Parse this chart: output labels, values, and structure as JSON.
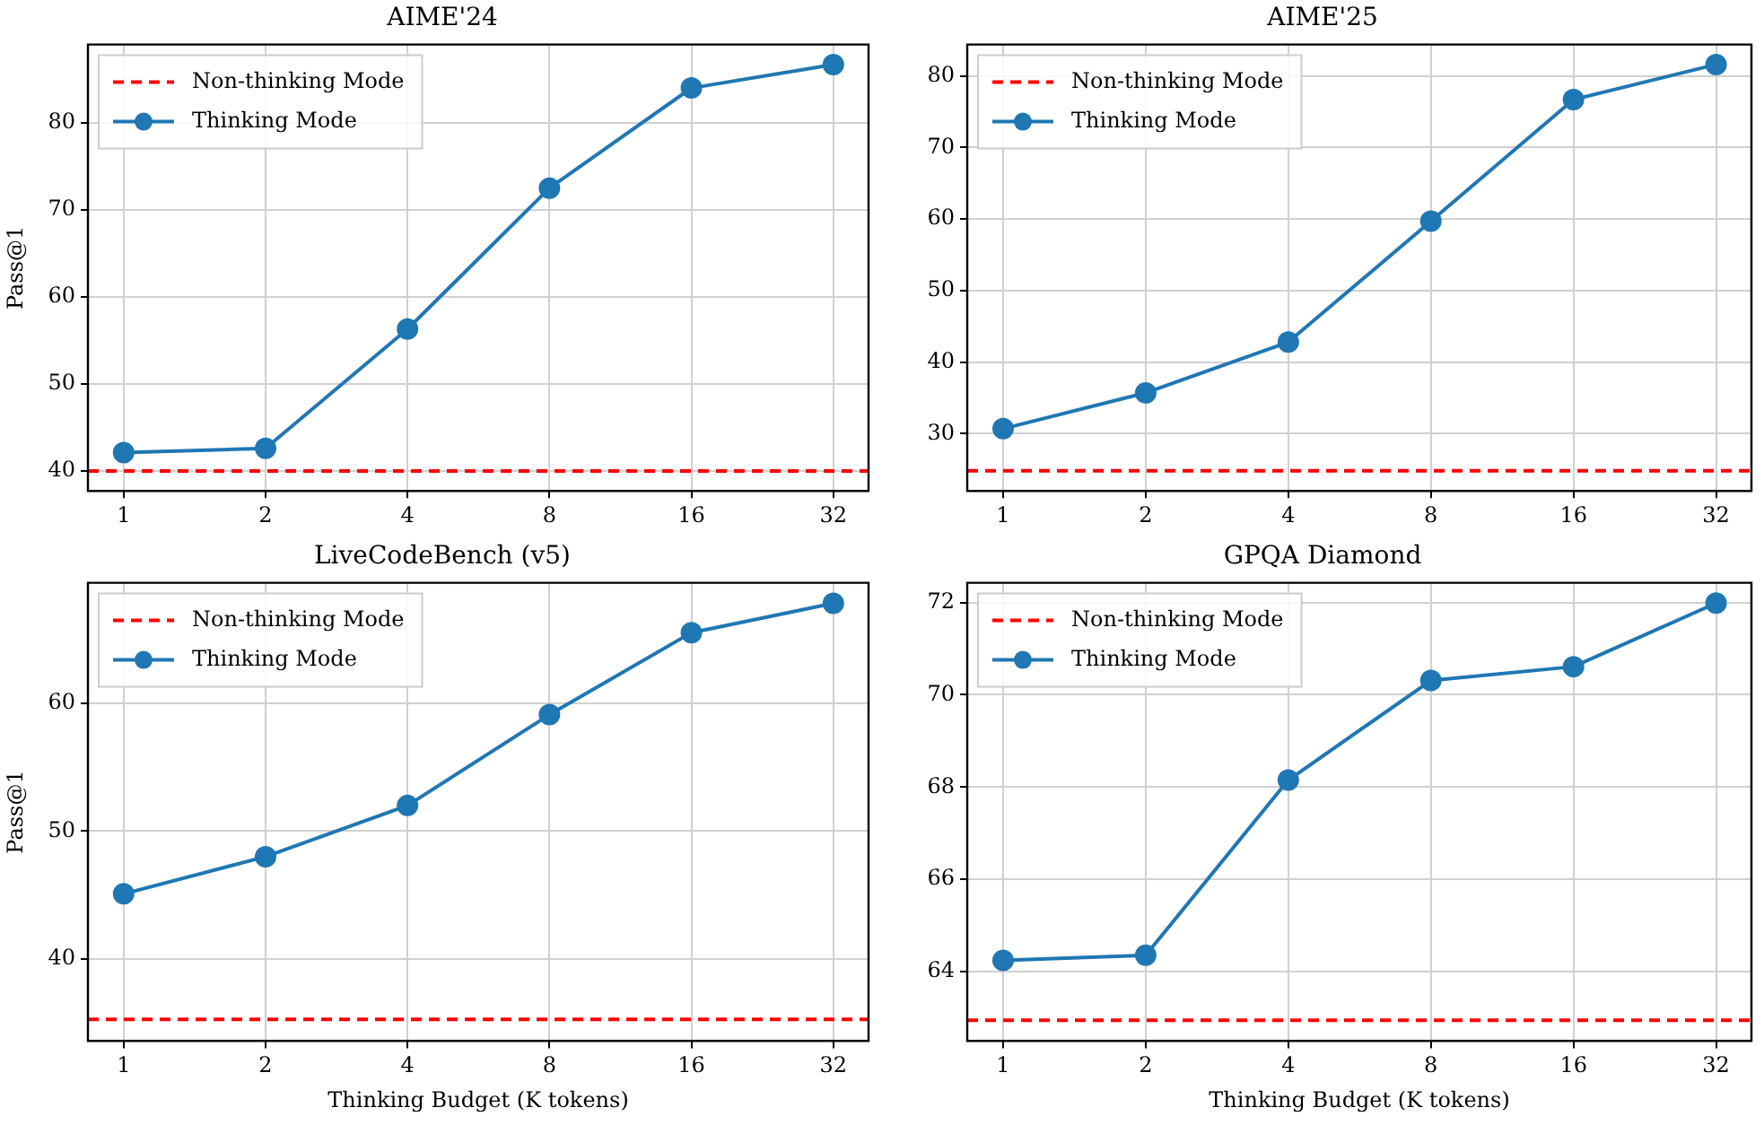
{
  "chart_data": [
    {
      "type": "line",
      "title": "AIME'24",
      "ylabel": "Pass@1",
      "log": "x",
      "grid": true,
      "legend": "top left",
      "marker": "circle",
      "line_style": "solid",
      "x": [
        1,
        2,
        4,
        8,
        16,
        32
      ],
      "xlim": [
        0.84,
        38
      ],
      "xticks": [
        1,
        2,
        4,
        8,
        16,
        32
      ],
      "ylim": [
        37.7,
        89
      ],
      "yticks": [
        40,
        50,
        60,
        70,
        80
      ],
      "series": [
        {
          "name": "Thinking Mode",
          "color": "#1f77b4",
          "values": [
            42.1,
            42.6,
            56.3,
            72.5,
            84.0,
            86.7
          ]
        }
      ],
      "ref_lines": [
        {
          "axis": "y",
          "value": 40.0,
          "label": "Non-thinking Mode",
          "color": "#ff0000",
          "line_style": "dashed"
        }
      ]
    },
    {
      "type": "line",
      "title": "AIME'25",
      "log": "x",
      "grid": true,
      "legend": "top left",
      "marker": "circle",
      "line_style": "solid",
      "x": [
        1,
        2,
        4,
        8,
        16,
        32
      ],
      "xlim": [
        0.84,
        38
      ],
      "xticks": [
        1,
        2,
        4,
        8,
        16,
        32
      ],
      "ylim": [
        22,
        84.4
      ],
      "yticks": [
        30,
        40,
        50,
        60,
        70,
        80
      ],
      "series": [
        {
          "name": "Thinking Mode",
          "color": "#1f77b4",
          "values": [
            30.7,
            35.7,
            42.8,
            59.7,
            76.7,
            81.6
          ]
        }
      ],
      "ref_lines": [
        {
          "axis": "y",
          "value": 24.8,
          "label": "Non-thinking Mode",
          "color": "#ff0000",
          "line_style": "dashed"
        }
      ]
    },
    {
      "type": "line",
      "title": "LiveCodeBench (v5)",
      "xlabel": "Thinking Budget (K tokens)",
      "ylabel": "Pass@1",
      "log": "x",
      "grid": true,
      "legend": "top left",
      "marker": "circle",
      "line_style": "solid",
      "x": [
        1,
        2,
        4,
        8,
        16,
        32
      ],
      "xlim": [
        0.84,
        38
      ],
      "xticks": [
        1,
        2,
        4,
        8,
        16,
        32
      ],
      "ylim": [
        33.6,
        69.4
      ],
      "yticks": [
        40,
        50,
        60
      ],
      "series": [
        {
          "name": "Thinking Mode",
          "color": "#1f77b4",
          "values": [
            45.1,
            48.0,
            52.0,
            59.1,
            65.5,
            67.8
          ]
        }
      ],
      "ref_lines": [
        {
          "axis": "y",
          "value": 35.3,
          "label": "Non-thinking Mode",
          "color": "#ff0000",
          "line_style": "dashed"
        }
      ]
    },
    {
      "type": "line",
      "title": "GPQA Diamond",
      "xlabel": "Thinking Budget (K tokens)",
      "log": "x",
      "grid": true,
      "legend": "top left",
      "marker": "circle",
      "line_style": "solid",
      "x": [
        1,
        2,
        4,
        8,
        16,
        32
      ],
      "xlim": [
        0.84,
        38
      ],
      "xticks": [
        1,
        2,
        4,
        8,
        16,
        32
      ],
      "ylim": [
        62.49,
        72.43
      ],
      "yticks": [
        64,
        66,
        68,
        70,
        72
      ],
      "series": [
        {
          "name": "Thinking Mode",
          "color": "#1f77b4",
          "values": [
            64.24,
            64.35,
            68.15,
            70.31,
            70.61,
            71.99
          ]
        }
      ],
      "ref_lines": [
        {
          "axis": "y",
          "value": 62.94,
          "label": "Non-thinking Mode",
          "color": "#ff0000",
          "line_style": "dashed"
        }
      ]
    }
  ]
}
